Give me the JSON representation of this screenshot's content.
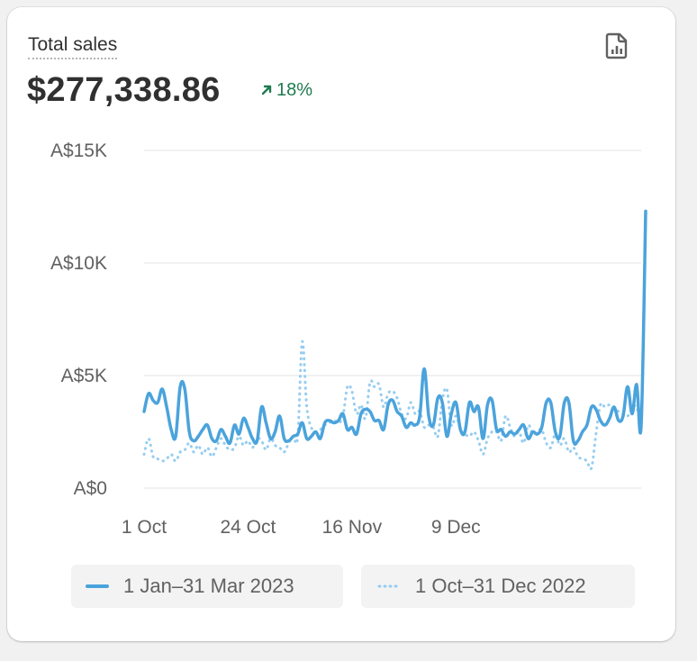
{
  "card": {
    "title": "Total sales",
    "total": "$277,338.86",
    "change": "18%",
    "report_icon": "file-chart-icon",
    "change_icon": "arrow-up-right-icon"
  },
  "chart_data": {
    "type": "line",
    "y_ticks": [
      "A$15K",
      "A$10K",
      "A$5K",
      "A$0"
    ],
    "x_ticks": [
      "1 Oct",
      "24 Oct",
      "16 Nov",
      "9 Dec"
    ],
    "ylim": [
      0,
      15000
    ],
    "grid": true,
    "legend_position": "bottom",
    "colors": {
      "current": "#4ba3dc",
      "previous": "#96cdf0",
      "grid": "#e3e3e3"
    },
    "series": [
      {
        "name": "1 Jan–31 Mar 2023",
        "style": "solid",
        "values": [
          3400,
          4200,
          3900,
          3800,
          4400,
          3600,
          2600,
          2300,
          4500,
          4400,
          2500,
          2100,
          2300,
          2600,
          2800,
          2200,
          2100,
          2600,
          2300,
          2000,
          2800,
          2400,
          3100,
          2700,
          2200,
          2100,
          3600,
          2900,
          2200,
          2500,
          3200,
          2200,
          2100,
          2300,
          2400,
          2900,
          2200,
          2300,
          2500,
          2200,
          2900,
          3000,
          2900,
          3000,
          3300,
          2600,
          2700,
          2400,
          3300,
          3500,
          3400,
          3000,
          3000,
          2600,
          3700,
          3900,
          3400,
          3200,
          2700,
          2900,
          2800,
          3200,
          5300,
          3200,
          2800,
          4000,
          3800,
          2300,
          3300,
          3800,
          2600,
          2500,
          3800,
          3400,
          3600,
          2200,
          3700,
          3900,
          2600,
          2600,
          2300,
          2500,
          2400,
          2600,
          2800,
          2200,
          2500,
          2400,
          2700,
          3800,
          3800,
          2500,
          2300,
          3800,
          3800,
          2100,
          2100,
          2500,
          2800,
          3600,
          3500,
          3000,
          2800,
          3100,
          3600,
          3000,
          3200,
          4500,
          3300,
          4600,
          2800,
          12300
        ]
      },
      {
        "name": "1 Oct–31 Dec 2022",
        "style": "dotted",
        "values": [
          1500,
          2200,
          1400,
          1300,
          1200,
          1300,
          1500,
          1200,
          1600,
          1700,
          2000,
          1600,
          1900,
          1500,
          1800,
          1400,
          1800,
          2200,
          1900,
          1700,
          1800,
          2300,
          1900,
          2100,
          1800,
          2200,
          2100,
          1700,
          2200,
          1900,
          1800,
          1600,
          2000,
          2300,
          2300,
          6500,
          3600,
          2700,
          2500,
          2600,
          2800,
          2900,
          3000,
          2900,
          3200,
          4500,
          4300,
          3300,
          3700,
          3100,
          4700,
          4500,
          4600,
          3600,
          4200,
          4300,
          4000,
          3300,
          3100,
          3800,
          3300,
          3400,
          2700,
          2800,
          2700,
          2300,
          3900,
          4400,
          2800,
          3200,
          2600,
          2400,
          2300,
          2500,
          2100,
          1500,
          2200,
          2500,
          2500,
          2100,
          3200,
          2700,
          2300,
          2500,
          2000,
          2800,
          2400,
          2500,
          2600,
          2000,
          1800,
          2400,
          1900,
          2200,
          1600,
          1800,
          1400,
          1300,
          1200,
          900,
          2400,
          3700,
          3600,
          3700,
          3600,
          3400,
          3300,
          3200,
          3500,
          3600,
          2600
        ]
      }
    ]
  },
  "legend": {
    "current": "1 Jan–31 Mar 2023",
    "previous": "1 Oct–31 Dec 2022"
  }
}
